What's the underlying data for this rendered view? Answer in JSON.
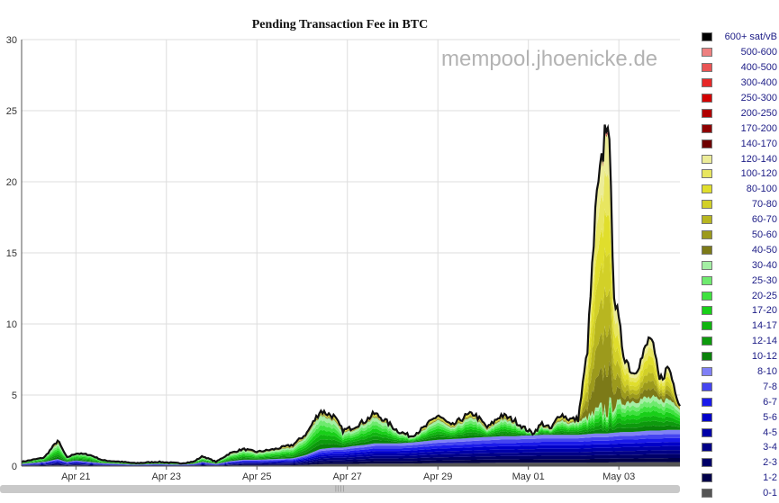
{
  "chart_data": {
    "type": "area",
    "title": "Pending Transaction Fee in BTC",
    "watermark": "mempool.jhoenicke.de",
    "xlabel": "",
    "ylabel": "",
    "ylim": [
      0,
      30
    ],
    "y_ticks": [
      0,
      5,
      10,
      15,
      20,
      25,
      30
    ],
    "x_tick_labels": [
      "Apr 21",
      "Apr 23",
      "Apr 25",
      "Apr 27",
      "Apr 29",
      "May 01",
      "May 03"
    ],
    "x_range_days": [
      0,
      14.55
    ],
    "x_tick_days": [
      1.2,
      3.2,
      5.2,
      7.2,
      9.2,
      11.2,
      13.2
    ],
    "grid": true,
    "legend_position": "right",
    "series": [
      {
        "name": "0-1",
        "color": "#555555"
      },
      {
        "name": "1-2",
        "color": "#00004a"
      },
      {
        "name": "2-3",
        "color": "#000068"
      },
      {
        "name": "3-4",
        "color": "#000086"
      },
      {
        "name": "4-5",
        "color": "#0000a8"
      },
      {
        "name": "5-6",
        "color": "#0000c8"
      },
      {
        "name": "6-7",
        "color": "#1a1aea"
      },
      {
        "name": "7-8",
        "color": "#4545f0"
      },
      {
        "name": "8-10",
        "color": "#8080f6"
      },
      {
        "name": "10-12",
        "color": "#0a820a"
      },
      {
        "name": "12-14",
        "color": "#0d9a0d"
      },
      {
        "name": "14-17",
        "color": "#10b510"
      },
      {
        "name": "17-20",
        "color": "#18cf18"
      },
      {
        "name": "20-25",
        "color": "#3ee23e"
      },
      {
        "name": "25-30",
        "color": "#6eea6e"
      },
      {
        "name": "30-40",
        "color": "#a4efa4"
      },
      {
        "name": "40-50",
        "color": "#7c7a18"
      },
      {
        "name": "50-60",
        "color": "#9c9a1c"
      },
      {
        "name": "60-70",
        "color": "#b8b620"
      },
      {
        "name": "70-80",
        "color": "#d2d028"
      },
      {
        "name": "80-100",
        "color": "#e0de2c"
      },
      {
        "name": "100-120",
        "color": "#e8e660"
      },
      {
        "name": "120-140",
        "color": "#ecec98"
      },
      {
        "name": "140-170",
        "color": "#6e0000"
      },
      {
        "name": "170-200",
        "color": "#8e0000"
      },
      {
        "name": "200-250",
        "color": "#b00000"
      },
      {
        "name": "250-300",
        "color": "#d20000"
      },
      {
        "name": "300-400",
        "color": "#e62828"
      },
      {
        "name": "400-500",
        "color": "#ea5454"
      },
      {
        "name": "500-600",
        "color": "#ee8080"
      },
      {
        "name": "600+ sat/vB",
        "color": "#000000"
      }
    ],
    "total_profile": {
      "x": [
        0,
        0.5,
        0.8,
        1.0,
        1.2,
        1.5,
        1.8,
        2.2,
        2.5,
        3.0,
        3.5,
        3.8,
        4.0,
        4.3,
        4.6,
        4.9,
        5.2,
        5.6,
        6.0,
        6.3,
        6.6,
        6.9,
        7.1,
        7.3,
        7.6,
        7.8,
        8.0,
        8.3,
        8.6,
        8.9,
        9.2,
        9.5,
        9.8,
        10.0,
        10.3,
        10.6,
        10.9,
        11.1,
        11.3,
        11.5,
        11.7,
        11.9,
        12.1,
        12.3,
        12.5,
        12.7,
        12.8,
        12.95,
        13.1,
        13.3,
        13.5,
        13.7,
        13.9,
        14.1,
        14.3,
        14.5,
        14.55
      ],
      "total": [
        0.3,
        0.6,
        1.8,
        0.6,
        0.9,
        0.8,
        0.4,
        0.3,
        0.2,
        0.3,
        0.2,
        0.3,
        0.7,
        0.3,
        0.9,
        1.2,
        1.0,
        1.2,
        1.5,
        2.3,
        3.9,
        3.5,
        2.5,
        2.7,
        3.2,
        3.7,
        3.3,
        2.5,
        2.1,
        2.7,
        3.6,
        2.8,
        3.5,
        3.7,
        2.7,
        3.6,
        3.2,
        2.7,
        2.3,
        3.0,
        2.6,
        3.7,
        3.3,
        3.3,
        8.0,
        18.5,
        20.5,
        25.5,
        12.0,
        8.0,
        6.5,
        7.5,
        9.2,
        6.0,
        7.0,
        4.8,
        4.3
      ],
      "blue_base": [
        0.15,
        0.3,
        0.5,
        0.3,
        0.4,
        0.3,
        0.2,
        0.15,
        0.1,
        0.15,
        0.1,
        0.15,
        0.3,
        0.15,
        0.35,
        0.45,
        0.45,
        0.5,
        0.55,
        0.8,
        1.2,
        1.3,
        1.3,
        1.4,
        1.5,
        1.6,
        1.6,
        1.6,
        1.65,
        1.75,
        1.85,
        1.9,
        1.95,
        2.0,
        2.05,
        2.1,
        2.1,
        2.15,
        2.15,
        2.2,
        2.2,
        2.2,
        2.2,
        2.2,
        2.25,
        2.3,
        2.3,
        2.3,
        2.35,
        2.4,
        2.4,
        2.45,
        2.5,
        2.5,
        2.55,
        2.55,
        2.55
      ],
      "green_top": [
        0.3,
        0.6,
        1.6,
        0.6,
        0.9,
        0.8,
        0.4,
        0.3,
        0.2,
        0.3,
        0.2,
        0.3,
        0.6,
        0.3,
        0.8,
        1.1,
        0.9,
        1.1,
        1.3,
        2.1,
        3.6,
        3.2,
        2.3,
        2.5,
        3.0,
        3.4,
        3.1,
        2.4,
        2.0,
        2.5,
        3.3,
        2.6,
        3.2,
        3.4,
        2.5,
        3.3,
        3.0,
        2.6,
        2.2,
        2.8,
        2.5,
        3.3,
        3.0,
        3.1,
        3.4,
        3.7,
        3.9,
        4.1,
        4.3,
        4.5,
        4.6,
        4.7,
        4.8,
        4.6,
        4.7,
        4.3,
        4.0
      ]
    }
  },
  "legend": {
    "items": [
      {
        "label": "600+ sat/vB",
        "color": "#000000"
      },
      {
        "label": "500-600",
        "color": "#ee8080"
      },
      {
        "label": "400-500",
        "color": "#ea5454"
      },
      {
        "label": "300-400",
        "color": "#e62828"
      },
      {
        "label": "250-300",
        "color": "#d20000"
      },
      {
        "label": "200-250",
        "color": "#b00000"
      },
      {
        "label": "170-200",
        "color": "#8e0000"
      },
      {
        "label": "140-170",
        "color": "#6e0000"
      },
      {
        "label": "120-140",
        "color": "#ecec98"
      },
      {
        "label": "100-120",
        "color": "#e8e660"
      },
      {
        "label": "80-100",
        "color": "#e0de2c"
      },
      {
        "label": "70-80",
        "color": "#d2d028"
      },
      {
        "label": "60-70",
        "color": "#b8b620"
      },
      {
        "label": "50-60",
        "color": "#9c9a1c"
      },
      {
        "label": "40-50",
        "color": "#7c7a18"
      },
      {
        "label": "30-40",
        "color": "#a4efa4"
      },
      {
        "label": "25-30",
        "color": "#6eea6e"
      },
      {
        "label": "20-25",
        "color": "#3ee23e"
      },
      {
        "label": "17-20",
        "color": "#18cf18"
      },
      {
        "label": "14-17",
        "color": "#10b510"
      },
      {
        "label": "12-14",
        "color": "#0d9a0d"
      },
      {
        "label": "10-12",
        "color": "#0a820a"
      },
      {
        "label": "8-10",
        "color": "#8080f6"
      },
      {
        "label": "7-8",
        "color": "#4545f0"
      },
      {
        "label": "6-7",
        "color": "#1a1aea"
      },
      {
        "label": "5-6",
        "color": "#0000c8"
      },
      {
        "label": "4-5",
        "color": "#0000a8"
      },
      {
        "label": "3-4",
        "color": "#000086"
      },
      {
        "label": "2-3",
        "color": "#000068"
      },
      {
        "label": "1-2",
        "color": "#00004a"
      },
      {
        "label": "0-1",
        "color": "#555555"
      }
    ]
  },
  "scrollbar": {
    "grip": "||||"
  }
}
